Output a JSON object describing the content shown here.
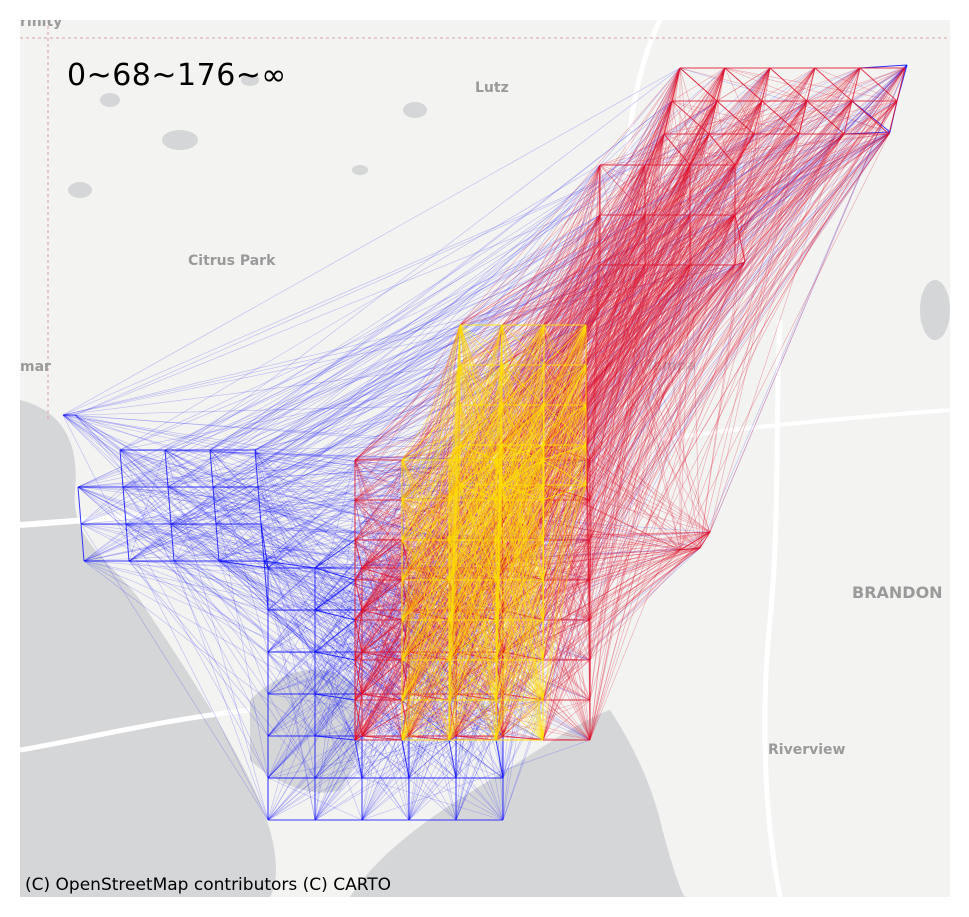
{
  "legend": {
    "breaks_text": "0~68~176~∞"
  },
  "attribution": "(C) OpenStreetMap contributors (C) CARTO",
  "places": {
    "top_left": "rinity",
    "lutz": "Lutz",
    "citrus_park": "Citrus Park",
    "left_edge": "mar",
    "brandon": "BRANDON",
    "riverview": "Riverview",
    "center": "Tampa"
  },
  "colors": {
    "low": "#0a0aff",
    "mid": "#e0102a",
    "high": "#ffe000",
    "water": "#d4d6d8",
    "land": "#f3f3f1"
  }
}
